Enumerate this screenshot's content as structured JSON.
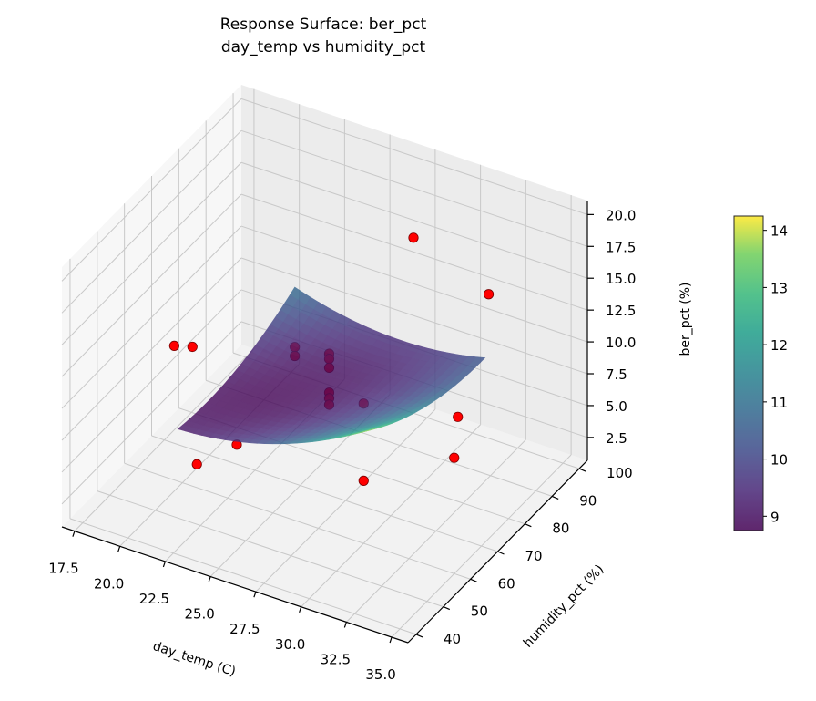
{
  "chart_data": {
    "type": "scatter",
    "projection": "3d",
    "title": "Response Surface: ber_pct",
    "subtitle": "day_temp vs humidity_pct",
    "xlabel": "day_temp (C)",
    "ylabel": "humidity_pct (%)",
    "zlabel": "ber_pct (%)",
    "xlim": [
      16.8,
      35.9
    ],
    "ylim": [
      37,
      103
    ],
    "zlim": [
      0.7,
      21.1
    ],
    "xticks": [
      "17.5",
      "20.0",
      "22.5",
      "25.0",
      "27.5",
      "30.0",
      "32.5",
      "35.0"
    ],
    "yticks": [
      "40",
      "50",
      "60",
      "70",
      "80",
      "90",
      "100"
    ],
    "zticks": [
      "2.5",
      "5.0",
      "7.5",
      "10.0",
      "12.5",
      "15.0",
      "17.5",
      "20.0"
    ],
    "grid": true,
    "points": [
      {
        "x": 20,
        "y": 57,
        "z": 12.1
      },
      {
        "x": 21,
        "y": 57,
        "z": 12.5
      },
      {
        "x": 25,
        "y": 68,
        "z": 12.0
      },
      {
        "x": 25,
        "y": 68,
        "z": 11.3
      },
      {
        "x": 26.6,
        "y": 70,
        "z": 11.8
      },
      {
        "x": 26.6,
        "y": 70,
        "z": 11.4
      },
      {
        "x": 26.6,
        "y": 70,
        "z": 10.7
      },
      {
        "x": 26.6,
        "y": 70,
        "z": 8.75
      },
      {
        "x": 26.6,
        "y": 70,
        "z": 8.3
      },
      {
        "x": 26.6,
        "y": 70,
        "z": 7.8
      },
      {
        "x": 29.7,
        "y": 62,
        "z": 11.1
      },
      {
        "x": 29,
        "y": 85,
        "z": 18.8
      },
      {
        "x": 32.4,
        "y": 90,
        "z": 14.9
      },
      {
        "x": 34,
        "y": 68,
        "z": 10.8
      },
      {
        "x": 35,
        "y": 60,
        "z": 9.8
      },
      {
        "x": 31.5,
        "y": 50,
        "z": 8.5
      },
      {
        "x": 24.5,
        "y": 50,
        "z": 8.0
      },
      {
        "x": 23.8,
        "y": 40,
        "z": 8.3
      }
    ],
    "point_color": "#ff0000",
    "surface": {
      "x_range": [
        22,
        32.5
      ],
      "y_range": [
        45,
        88
      ],
      "colormap": "viridis",
      "alpha": 0.8
    },
    "colorbar": {
      "range": [
        8.75,
        14.25
      ],
      "ticks": [
        "9",
        "10",
        "11",
        "12",
        "13",
        "14"
      ]
    }
  }
}
